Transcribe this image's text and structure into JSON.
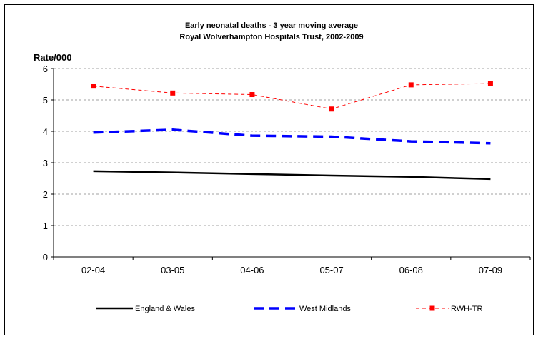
{
  "chart_data": {
    "type": "line",
    "title": "Early neonatal deaths - 3 year moving average",
    "subtitle": "Royal Wolverhampton Hospitals Trust,  2002-2009",
    "xlabel": "",
    "ylabel": "Rate/000",
    "categories": [
      "02-04",
      "03-05",
      "04-06",
      "05-07",
      "06-08",
      "07-09"
    ],
    "ylim": [
      0,
      6
    ],
    "yticks": [
      "0",
      "1",
      "2",
      "3",
      "4",
      "5",
      "6"
    ],
    "grid": "horizontal dashed",
    "legend_position": "bottom",
    "series": [
      {
        "name": "England & Wales",
        "values": [
          2.73,
          2.69,
          2.64,
          2.59,
          2.55,
          2.48
        ],
        "color": "#000000",
        "style": "solid"
      },
      {
        "name": "West Midlands",
        "values": [
          3.96,
          4.05,
          3.86,
          3.83,
          3.68,
          3.62
        ],
        "color": "#0000ff",
        "style": "dashed"
      },
      {
        "name": "RWH-TR",
        "values": [
          5.44,
          5.22,
          5.17,
          4.71,
          5.48,
          5.52
        ],
        "color": "#ff0000",
        "style": "dashed-marker"
      }
    ]
  }
}
